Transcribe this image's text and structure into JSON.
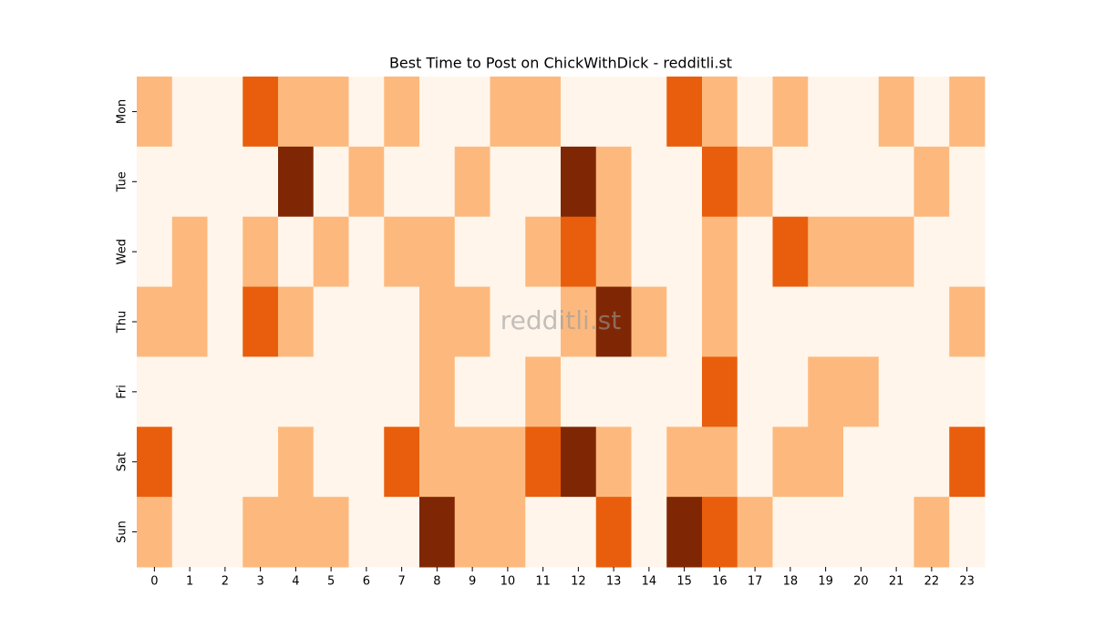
{
  "chart_data": {
    "type": "heatmap",
    "title": "Best Time to Post on ChickWithDick - redditli.st",
    "watermark": "redditli.st",
    "x": [
      0,
      1,
      2,
      3,
      4,
      5,
      6,
      7,
      8,
      9,
      10,
      11,
      12,
      13,
      14,
      15,
      16,
      17,
      18,
      19,
      20,
      21,
      22,
      23
    ],
    "y": [
      "Mon",
      "Tue",
      "Wed",
      "Thu",
      "Fri",
      "Sat",
      "Sun"
    ],
    "colors": [
      "#fff5eb",
      "#fdb97d",
      "#e95e0d",
      "#7f2704"
    ],
    "values": [
      [
        1,
        0,
        0,
        2,
        1,
        1,
        0,
        1,
        0,
        0,
        1,
        1,
        0,
        0,
        0,
        2,
        1,
        0,
        1,
        0,
        0,
        1,
        0,
        1
      ],
      [
        0,
        0,
        0,
        0,
        3,
        0,
        1,
        0,
        0,
        1,
        0,
        0,
        3,
        1,
        0,
        0,
        2,
        1,
        0,
        0,
        0,
        0,
        1,
        0
      ],
      [
        0,
        1,
        0,
        1,
        0,
        1,
        0,
        1,
        1,
        0,
        0,
        1,
        2,
        1,
        0,
        0,
        1,
        0,
        2,
        1,
        1,
        1,
        0,
        0
      ],
      [
        1,
        1,
        0,
        2,
        1,
        0,
        0,
        0,
        1,
        1,
        0,
        0,
        1,
        3,
        1,
        0,
        1,
        0,
        0,
        0,
        0,
        0,
        0,
        1
      ],
      [
        0,
        0,
        0,
        0,
        0,
        0,
        0,
        0,
        1,
        0,
        0,
        1,
        0,
        0,
        0,
        0,
        2,
        0,
        0,
        1,
        1,
        0,
        0,
        0
      ],
      [
        2,
        0,
        0,
        0,
        1,
        0,
        0,
        2,
        1,
        1,
        1,
        2,
        3,
        1,
        0,
        1,
        1,
        0,
        1,
        1,
        0,
        0,
        0,
        2
      ],
      [
        1,
        0,
        0,
        1,
        1,
        1,
        0,
        0,
        3,
        1,
        1,
        0,
        0,
        2,
        0,
        3,
        2,
        1,
        0,
        0,
        0,
        0,
        1,
        0
      ]
    ]
  }
}
